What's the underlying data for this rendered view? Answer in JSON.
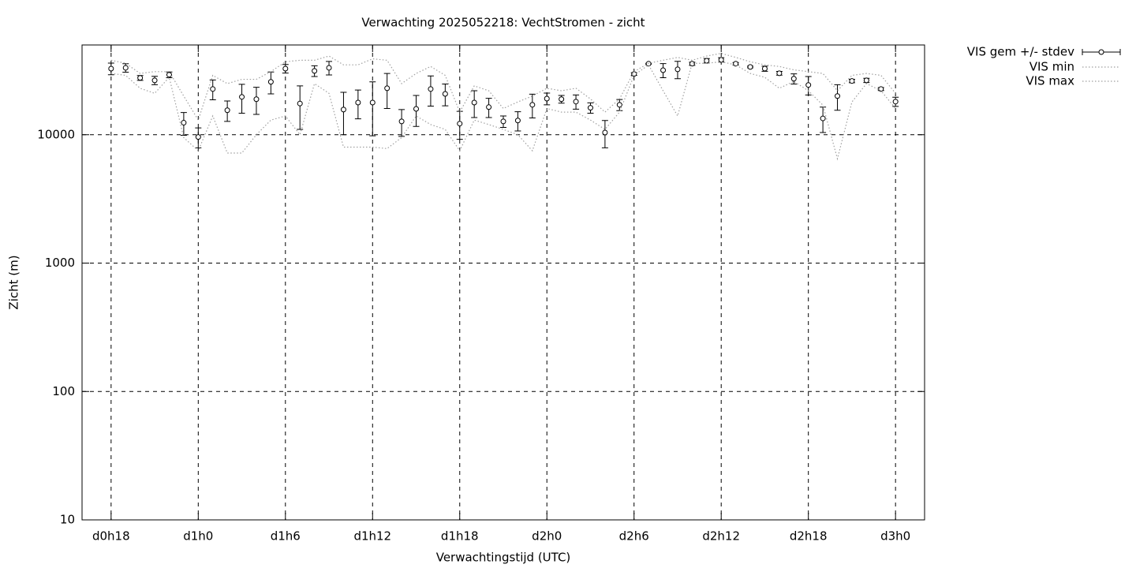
{
  "chart_data": {
    "type": "errorbar",
    "title": "Verwachting 2025052218: VechtStromen - zicht",
    "x_label": "Verwachtingstijd (UTC)",
    "y_label": "Zicht (m)",
    "x": [
      18,
      19,
      20,
      21,
      22,
      23,
      24,
      25,
      26,
      27,
      28,
      29,
      30,
      31,
      32,
      33,
      34,
      35,
      36,
      37,
      38,
      39,
      40,
      41,
      42,
      43,
      44,
      45,
      46,
      47,
      48,
      49,
      50,
      51,
      52,
      53,
      54,
      55,
      56,
      57,
      58,
      59,
      60,
      61,
      62,
      63,
      64,
      65,
      66,
      67,
      68,
      69,
      70,
      71,
      72
    ],
    "xlim": [
      16,
      74
    ],
    "xticks": [
      {
        "value": 18,
        "label": "d0h18"
      },
      {
        "value": 24,
        "label": "d1h0"
      },
      {
        "value": 30,
        "label": "d1h6"
      },
      {
        "value": 36,
        "label": "d1h12"
      },
      {
        "value": 42,
        "label": "d1h18"
      },
      {
        "value": 48,
        "label": "d2h0"
      },
      {
        "value": 54,
        "label": "d2h6"
      },
      {
        "value": 60,
        "label": "d2h12"
      },
      {
        "value": 66,
        "label": "d2h18"
      },
      {
        "value": 72,
        "label": "d3h0"
      }
    ],
    "ylim": [
      10,
      50000
    ],
    "yticks": [
      10,
      100,
      1000,
      10000
    ],
    "log_y": true,
    "grid": true,
    "legend": "outside-top-right",
    "series": [
      {
        "name": "VIS gem +/- stdev",
        "color": "#000000",
        "values": [
          32700,
          33200,
          27700,
          26500,
          29300,
          12400,
          9600,
          22700,
          15500,
          19700,
          18900,
          25800,
          32700,
          17500,
          31400,
          33200,
          15700,
          17800,
          17800,
          23000,
          12700,
          15900,
          22700,
          20800,
          12200,
          17800,
          16400,
          12700,
          12900,
          17100,
          19100,
          18900,
          18100,
          16200,
          10400,
          17100,
          29700,
          35700,
          31800,
          32300,
          35700,
          37700,
          38300,
          35700,
          33700,
          32700,
          30100,
          27300,
          24400,
          13400,
          20000,
          26200,
          26500,
          22700,
          18100
        ],
        "errors": [
          3400,
          2500,
          1200,
          2000,
          1500,
          2500,
          1700,
          4000,
          2800,
          5000,
          4500,
          5000,
          2500,
          6500,
          3000,
          4000,
          5700,
          4500,
          8000,
          7000,
          3000,
          4300,
          6000,
          4000,
          3000,
          4200,
          2800,
          1300,
          2200,
          3600,
          2000,
          1300,
          2300,
          1500,
          2500,
          1700,
          700,
          300,
          4000,
          5000,
          1000,
          1500,
          1500,
          800,
          500,
          1500,
          1000,
          2500,
          4000,
          3000,
          4500,
          800,
          1000,
          600,
          1500
        ]
      },
      {
        "name": "VIS min",
        "color": "#a0a0a0",
        "values": [
          30000,
          29000,
          23000,
          21000,
          28000,
          9500,
          7500,
          14000,
          7200,
          7200,
          10000,
          13000,
          14000,
          10000,
          25000,
          21000,
          8000,
          8000,
          8000,
          7800,
          9500,
          14000,
          12000,
          11000,
          7500,
          13000,
          12000,
          11000,
          10000,
          7500,
          16000,
          15000,
          15000,
          13000,
          11000,
          15000,
          29000,
          35000,
          22000,
          14000,
          36000,
          36000,
          37000,
          35000,
          30000,
          28000,
          23000,
          26000,
          22000,
          17000,
          6500,
          18000,
          25000,
          22000,
          16000
        ]
      },
      {
        "name": "VIS max",
        "color": "#a0a0a0",
        "values": [
          38000,
          36000,
          30000,
          31000,
          31000,
          20000,
          13000,
          29000,
          25000,
          27000,
          27000,
          31000,
          37000,
          38000,
          38000,
          41000,
          35000,
          35000,
          39000,
          38000,
          25000,
          30000,
          34000,
          29000,
          15000,
          24000,
          22000,
          16000,
          18000,
          20000,
          23000,
          22000,
          23000,
          19000,
          15000,
          19000,
          31000,
          36000,
          38000,
          40000,
          38000,
          41000,
          43000,
          40000,
          37000,
          35000,
          34000,
          32000,
          31000,
          30000,
          22000,
          29000,
          30000,
          29000,
          21000
        ]
      }
    ]
  }
}
